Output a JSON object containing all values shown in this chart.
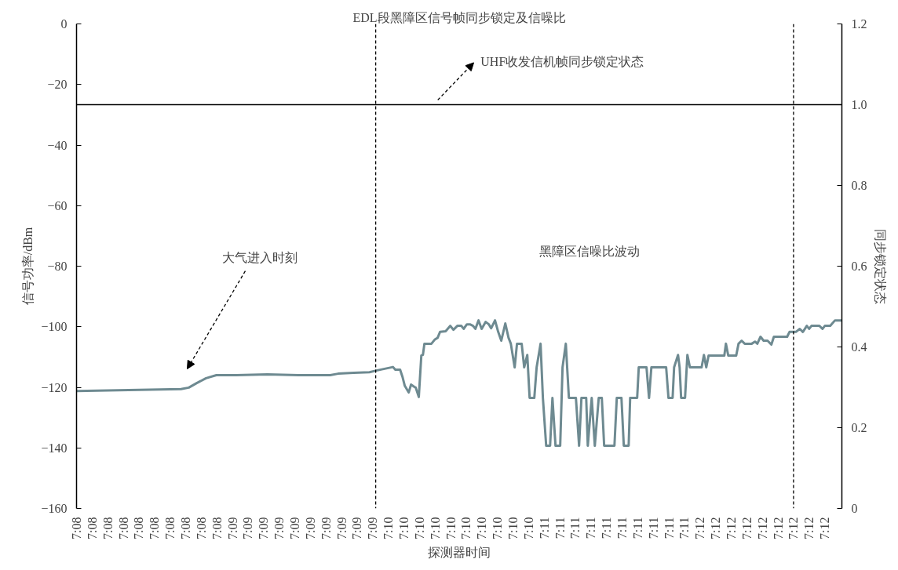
{
  "chart_data": {
    "type": "line",
    "title": "EDL段黑障区信号帧同步锁定及信噪比",
    "xlabel": "探测器时间",
    "ylabel": "信号功率/dBm",
    "y2label": "同步锁定状态",
    "xlim": [
      7.12583,
      7.20767
    ],
    "xticks": [
      {
        "value": 7.12583,
        "label": "7:08"
      },
      {
        "value": 7.1275,
        "label": "7:08"
      },
      {
        "value": 7.12917,
        "label": "7:08"
      },
      {
        "value": 7.13083,
        "label": "7:08"
      },
      {
        "value": 7.1325,
        "label": "7:08"
      },
      {
        "value": 7.13417,
        "label": "7:08"
      },
      {
        "value": 7.13583,
        "label": "7:08"
      },
      {
        "value": 7.1375,
        "label": "7:08"
      },
      {
        "value": 7.13917,
        "label": "7:08"
      },
      {
        "value": 7.14083,
        "label": "7:08"
      },
      {
        "value": 7.1425,
        "label": "7:09"
      },
      {
        "value": 7.14417,
        "label": "7:09"
      },
      {
        "value": 7.14583,
        "label": "7:09"
      },
      {
        "value": 7.1475,
        "label": "7:09"
      },
      {
        "value": 7.14917,
        "label": "7:09"
      },
      {
        "value": 7.15083,
        "label": "7:09"
      },
      {
        "value": 7.1525,
        "label": "7:09"
      },
      {
        "value": 7.15417,
        "label": "7:09"
      },
      {
        "value": 7.15583,
        "label": "7:09"
      },
      {
        "value": 7.1575,
        "label": "7:09"
      },
      {
        "value": 7.15917,
        "label": "7:10"
      },
      {
        "value": 7.16083,
        "label": "7:10"
      },
      {
        "value": 7.1625,
        "label": "7:10"
      },
      {
        "value": 7.16417,
        "label": "7:10"
      },
      {
        "value": 7.16583,
        "label": "7:10"
      },
      {
        "value": 7.1675,
        "label": "7:10"
      },
      {
        "value": 7.16917,
        "label": "7:10"
      },
      {
        "value": 7.17083,
        "label": "7:10"
      },
      {
        "value": 7.1725,
        "label": "7:10"
      },
      {
        "value": 7.17417,
        "label": "7:10"
      },
      {
        "value": 7.17583,
        "label": "7:11"
      },
      {
        "value": 7.1775,
        "label": "7:11"
      },
      {
        "value": 7.17917,
        "label": "7:11"
      },
      {
        "value": 7.18083,
        "label": "7:11"
      },
      {
        "value": 7.1825,
        "label": "7:11"
      },
      {
        "value": 7.18417,
        "label": "7:11"
      },
      {
        "value": 7.18583,
        "label": "7:11"
      },
      {
        "value": 7.1875,
        "label": "7:11"
      },
      {
        "value": 7.18917,
        "label": "7:11"
      },
      {
        "value": 7.19083,
        "label": "7:11"
      },
      {
        "value": 7.1925,
        "label": "7:12"
      },
      {
        "value": 7.19417,
        "label": "7:12"
      },
      {
        "value": 7.19583,
        "label": "7:12"
      },
      {
        "value": 7.1975,
        "label": "7:12"
      },
      {
        "value": 7.19917,
        "label": "7:12"
      },
      {
        "value": 7.20083,
        "label": "7:12"
      },
      {
        "value": 7.2025,
        "label": "7:12"
      },
      {
        "value": 7.20417,
        "label": "7:12"
      },
      {
        "value": 7.20583,
        "label": "7:12"
      }
    ],
    "ylim": [
      -160,
      0
    ],
    "yticks": [
      {
        "value": -160,
        "label": "−160"
      },
      {
        "value": -140,
        "label": "−140"
      },
      {
        "value": -120,
        "label": "−120"
      },
      {
        "value": -100,
        "label": "−100"
      },
      {
        "value": -80,
        "label": "−80"
      },
      {
        "value": -60,
        "label": "−60"
      },
      {
        "value": -40,
        "label": "−40"
      },
      {
        "value": -20,
        "label": "−20"
      },
      0
    ],
    "y2lim": [
      0,
      1.2
    ],
    "y2ticks": [
      0,
      0.2,
      0.4,
      0.6,
      0.8,
      {
        "value": 1,
        "label": "1.0"
      },
      1.2
    ],
    "grid": false,
    "marker": "none",
    "line_style": "solid",
    "series": [
      {
        "color": "#6e8a91",
        "x": [
          7.12583,
          7.137,
          7.13783,
          7.13868,
          7.13968,
          7.14078,
          7.14288,
          7.14623,
          7.1496,
          7.15295,
          7.1538,
          7.15547,
          7.15715,
          7.15798,
          7.15967,
          7.15992,
          7.16043,
          7.16068,
          7.16093,
          7.16135,
          7.1616,
          7.16193,
          7.1621,
          7.16243,
          7.1627,
          7.16287,
          7.16303,
          7.16378,
          7.16412,
          7.16445,
          7.1647,
          7.1653,
          7.1658,
          7.16613,
          7.16655,
          7.16698,
          7.16723,
          7.16757,
          7.1679,
          7.16823,
          7.16848,
          7.16882,
          7.16915,
          7.16958,
          7.16992,
          7.17017,
          7.17058,
          7.17092,
          7.17125,
          7.17168,
          7.17202,
          7.17227,
          7.17268,
          7.17293,
          7.17343,
          7.1737,
          7.17403,
          7.17428,
          7.17478,
          7.17503,
          7.17545,
          7.1757,
          7.17605,
          7.17647,
          7.17672,
          7.17705,
          7.17755,
          7.1778,
          7.17815,
          7.17848,
          7.17923,
          7.17957,
          7.17982,
          7.18033,
          7.1805,
          7.18092,
          7.18125,
          7.18167,
          7.182,
          7.18225,
          7.18335,
          7.1836,
          7.1841,
          7.18435,
          7.18487,
          7.18503,
          7.18578,
          7.18595,
          7.18678,
          7.18705,
          7.1873,
          7.18888,
          7.18913,
          7.18957,
          7.18973,
          7.19015,
          7.19032,
          7.19048,
          7.1909,
          7.19115,
          7.19142,
          7.19267,
          7.19292,
          7.19317,
          7.19342,
          7.1951,
          7.19527,
          7.19552,
          7.19637,
          7.19662,
          7.19695,
          7.19728,
          7.19803,
          7.19838,
          7.19863,
          7.19897,
          7.1993,
          7.19972,
          7.20013,
          7.2004,
          7.20182,
          7.20207,
          7.20275,
          7.20317,
          7.2035,
          7.20392,
          7.20417,
          7.20442,
          7.20527,
          7.2056,
          7.20585,
          7.20643,
          7.20693,
          7.20767
        ],
        "values": [
          -121.2,
          -120.6,
          -120.1,
          -118.6,
          -117.0,
          -116.0,
          -116.0,
          -115.7,
          -116.0,
          -116.0,
          -115.5,
          -115.2,
          -115.0,
          -114.4,
          -113.3,
          -114.2,
          -114.2,
          -116.5,
          -119.5,
          -121.7,
          -119.1,
          -119.8,
          -120.1,
          -123.2,
          -109.5,
          -109.3,
          -105.6,
          -105.6,
          -104.3,
          -103.6,
          -101.7,
          -101.5,
          -99.7,
          -101.0,
          -99.7,
          -99.7,
          -100.7,
          -99.2,
          -99.2,
          -99.7,
          -100.7,
          -97.9,
          -100.7,
          -98.4,
          -99.2,
          -100.5,
          -97.9,
          -101.7,
          -104.6,
          -98.9,
          -103.6,
          -105.6,
          -113.4,
          -105.6,
          -105.6,
          -113.4,
          -109.3,
          -123.5,
          -123.5,
          -113.4,
          -105.6,
          -123.5,
          -139.3,
          -139.3,
          -123.5,
          -139.3,
          -139.3,
          -113.4,
          -105.6,
          -123.5,
          -123.5,
          -139.3,
          -123.5,
          -123.5,
          -139.3,
          -123.5,
          -139.3,
          -123.5,
          -123.5,
          -139.3,
          -139.3,
          -123.5,
          -123.5,
          -139.3,
          -139.3,
          -123.5,
          -123.5,
          -113.4,
          -113.4,
          -123.5,
          -113.4,
          -113.4,
          -123.5,
          -123.5,
          -113.4,
          -109.3,
          -113.4,
          -123.5,
          -123.5,
          -109.3,
          -113.4,
          -113.4,
          -109.3,
          -113.4,
          -109.5,
          -109.5,
          -105.6,
          -109.5,
          -109.5,
          -105.6,
          -104.6,
          -105.6,
          -105.6,
          -104.9,
          -105.6,
          -103.3,
          -104.6,
          -104.6,
          -105.9,
          -103.3,
          -103.3,
          -101.7,
          -101.7,
          -100.7,
          -101.7,
          -99.7,
          -100.7,
          -99.7,
          -99.7,
          -100.7,
          -99.7,
          -99.7,
          -97.9,
          -97.9
        ]
      },
      {
        "color": "#000000",
        "axis": "y2",
        "x": [
          7.12583,
          7.20767
        ],
        "values": [
          1.0,
          1.0
        ]
      }
    ],
    "ref_lines": [
      {
        "axis": "x",
        "value": 7.15782,
        "color": "#000000",
        "line_style": "dashed"
      },
      {
        "axis": "x",
        "value": 7.2025,
        "color": "#000000",
        "line_style": "dashed"
      }
    ],
    "annotations": [
      "大气进入时刻",
      "UHF收发信机帧同步锁定状态",
      "黑障区信噪比波动"
    ]
  }
}
